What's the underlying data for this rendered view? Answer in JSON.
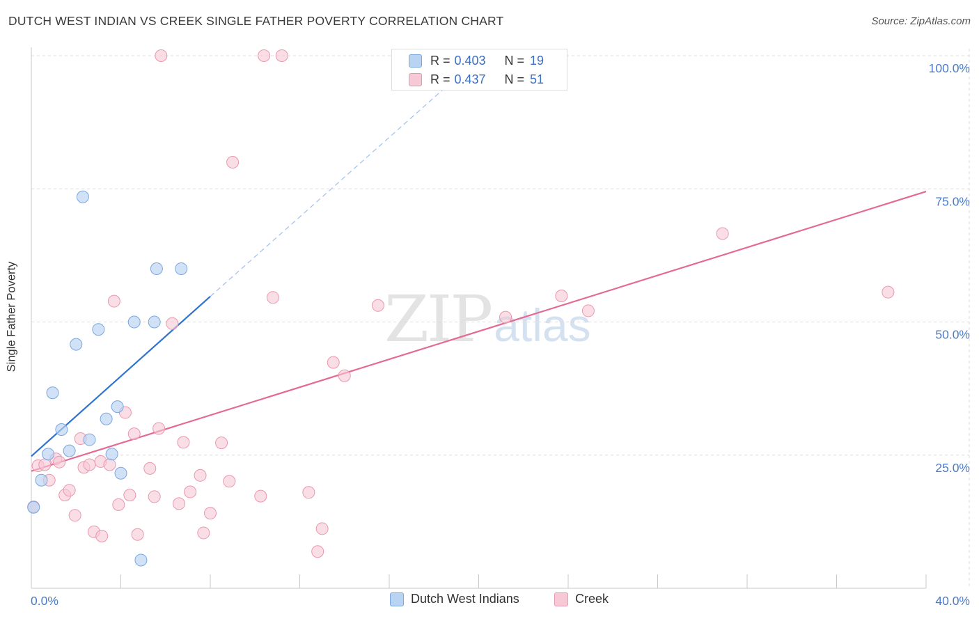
{
  "header": {
    "title": "DUTCH WEST INDIAN VS CREEK SINGLE FATHER POVERTY CORRELATION CHART",
    "source": "Source: ZipAtlas.com"
  },
  "watermark": {
    "zip": "ZIP",
    "atlas": "atlas"
  },
  "legend": {
    "rows": [
      {
        "r_label": "R =",
        "r_value": "0.403",
        "n_label": "N =",
        "n_value": "19"
      },
      {
        "r_label": "R =",
        "r_value": "0.437",
        "n_label": "N =",
        "n_value": "51"
      }
    ]
  },
  "bottom_legend": {
    "series1": "Dutch West Indians",
    "series2": "Creek"
  },
  "colors": {
    "series1_fill": "#b9d3f3",
    "series1_stroke": "#7aa7df",
    "series1_line": "#2f73d0",
    "series2_fill": "#f7c8d6",
    "series2_stroke": "#eb96b0",
    "series2_line": "#e36a92",
    "axis_text": "#4a7cc9",
    "grid": "#dcdcdc"
  },
  "chart_data": {
    "type": "scatter",
    "title": "DUTCH WEST INDIAN VS CREEK SINGLE FATHER POVERTY CORRELATION CHART",
    "xlabel": "",
    "ylabel": "Single Father Poverty",
    "xlim": [
      0,
      40
    ],
    "ylim": [
      0,
      100
    ],
    "x_tick_labels": [
      "0.0%",
      "40.0%"
    ],
    "y_ticks": [
      25,
      50,
      75,
      100
    ],
    "y_tick_labels": [
      "25.0%",
      "50.0%",
      "75.0%",
      "100.0%"
    ],
    "grid": true,
    "legend_position": "top-center",
    "series": [
      {
        "name": "Dutch West Indians",
        "r": 0.403,
        "n": 19,
        "points": [
          [
            0.1,
            15.2
          ],
          [
            0.45,
            20.3
          ],
          [
            0.75,
            25.2
          ],
          [
            0.95,
            36.7
          ],
          [
            1.35,
            29.8
          ],
          [
            1.7,
            25.8
          ],
          [
            2.0,
            45.8
          ],
          [
            2.3,
            73.5
          ],
          [
            2.6,
            27.9
          ],
          [
            3.0,
            48.6
          ],
          [
            3.35,
            31.8
          ],
          [
            3.6,
            25.2
          ],
          [
            3.85,
            34.1
          ],
          [
            4.0,
            21.6
          ],
          [
            4.6,
            50.0
          ],
          [
            4.9,
            5.3
          ],
          [
            5.5,
            50.0
          ],
          [
            5.6,
            60.0
          ],
          [
            6.7,
            60.0
          ]
        ],
        "trend": {
          "x1": 0.0,
          "y1": 24.8,
          "x2": 8.0,
          "y2": 54.8
        },
        "trend_extension": {
          "x1": 8.0,
          "y1": 54.8,
          "x2": 18.5,
          "y2": 94.0
        }
      },
      {
        "name": "Creek",
        "r": 0.437,
        "n": 51,
        "points": [
          [
            0.1,
            15.3
          ],
          [
            0.3,
            23.0
          ],
          [
            0.6,
            23.2
          ],
          [
            0.8,
            20.3
          ],
          [
            1.1,
            24.3
          ],
          [
            1.25,
            23.7
          ],
          [
            1.5,
            17.5
          ],
          [
            1.7,
            18.4
          ],
          [
            1.95,
            13.7
          ],
          [
            2.2,
            28.1
          ],
          [
            2.35,
            22.7
          ],
          [
            2.6,
            23.2
          ],
          [
            2.8,
            10.6
          ],
          [
            3.1,
            23.8
          ],
          [
            3.15,
            9.8
          ],
          [
            3.5,
            23.2
          ],
          [
            3.7,
            53.9
          ],
          [
            3.9,
            15.7
          ],
          [
            4.2,
            33.0
          ],
          [
            4.4,
            17.5
          ],
          [
            4.6,
            29.0
          ],
          [
            4.75,
            10.1
          ],
          [
            5.3,
            22.5
          ],
          [
            5.5,
            17.2
          ],
          [
            5.7,
            30.0
          ],
          [
            6.3,
            49.7
          ],
          [
            6.6,
            15.9
          ],
          [
            6.8,
            27.4
          ],
          [
            7.1,
            18.1
          ],
          [
            7.55,
            21.2
          ],
          [
            7.7,
            10.4
          ],
          [
            8.0,
            14.1
          ],
          [
            8.5,
            27.3
          ],
          [
            8.85,
            20.1
          ],
          [
            9.0,
            80.0
          ],
          [
            5.8,
            100.0
          ],
          [
            10.25,
            17.3
          ],
          [
            10.4,
            100.0
          ],
          [
            10.8,
            54.6
          ],
          [
            11.2,
            100.0
          ],
          [
            12.4,
            18.0
          ],
          [
            12.8,
            6.9
          ],
          [
            13.0,
            11.2
          ],
          [
            13.5,
            42.4
          ],
          [
            14.0,
            39.9
          ],
          [
            15.5,
            53.1
          ],
          [
            21.2,
            50.9
          ],
          [
            23.7,
            54.9
          ],
          [
            24.9,
            52.1
          ],
          [
            30.9,
            66.6
          ],
          [
            38.3,
            55.6
          ]
        ],
        "trend": {
          "x1": 0.0,
          "y1": 22.0,
          "x2": 40.0,
          "y2": 74.5
        }
      }
    ]
  }
}
